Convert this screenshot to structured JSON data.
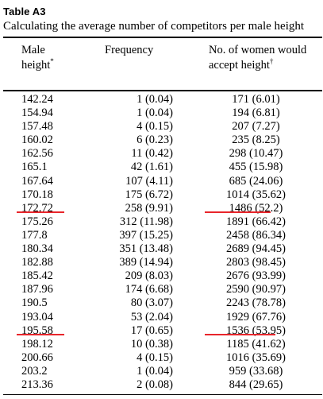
{
  "table_label": "Table A3",
  "caption": "Calculating the average number of competitors per male height",
  "headers": {
    "col1_line1": "Male",
    "col1_line2": "height",
    "col1_mark": "*",
    "col2": "Frequency",
    "col3_line1": "No. of women would",
    "col3_line2": "accept height",
    "col3_mark": "†"
  },
  "highlight_color": "#e8252b",
  "rows": [
    {
      "height": "142.24",
      "frequency": "1 (0.04)",
      "women": "171 (6.01)"
    },
    {
      "height": "154.94",
      "frequency": "1 (0.04)",
      "women": "194 (6.81)"
    },
    {
      "height": "157.48",
      "frequency": "4 (0.15)",
      "women": "207 (7.27)"
    },
    {
      "height": "160.02",
      "frequency": "6 (0.23)",
      "women": "235 (8.25)"
    },
    {
      "height": "162.56",
      "frequency": "11 (0.42)",
      "women": "298 (10.47)"
    },
    {
      "height": "165.1",
      "frequency": "42 (1.61)",
      "women": "455 (15.98)"
    },
    {
      "height": "167.64",
      "frequency": "107 (4.11)",
      "women": "685 (24.06)"
    },
    {
      "height": "170.18",
      "frequency": "175 (6.72)",
      "women": "1014 (35.62)"
    },
    {
      "height": "172.72",
      "frequency": "258 (9.91)",
      "women": "1486 (52.2)"
    },
    {
      "height": "175.26",
      "frequency": "312 (11.98)",
      "women": "1891 (66.42)"
    },
    {
      "height": "177.8",
      "frequency": "397 (15.25)",
      "women": "2458 (86.34)"
    },
    {
      "height": "180.34",
      "frequency": "351 (13.48)",
      "women": "2689 (94.45)"
    },
    {
      "height": "182.88",
      "frequency": "389 (14.94)",
      "women": "2803 (98.45)"
    },
    {
      "height": "185.42",
      "frequency": "209 (8.03)",
      "women": "2676 (93.99)"
    },
    {
      "height": "187.96",
      "frequency": "174 (6.68)",
      "women": "2590 (90.97)"
    },
    {
      "height": "190.5",
      "frequency": "80 (3.07)",
      "women": "2243 (78.78)"
    },
    {
      "height": "193.04",
      "frequency": "53 (2.04)",
      "women": "1929 (67.76)"
    },
    {
      "height": "195.58",
      "frequency": "17 (0.65)",
      "women": "1536 (53.95)"
    },
    {
      "height": "198.12",
      "frequency": "10 (0.38)",
      "women": "1185 (41.62)"
    },
    {
      "height": "200.66",
      "frequency": "4 (0.15)",
      "women": "1016 (35.69)"
    },
    {
      "height": "203.2",
      "frequency": "1 (0.04)",
      "women": "959 (33.68)"
    },
    {
      "height": "213.36",
      "frequency": "2 (0.08)",
      "women": "844 (29.65)"
    }
  ]
}
